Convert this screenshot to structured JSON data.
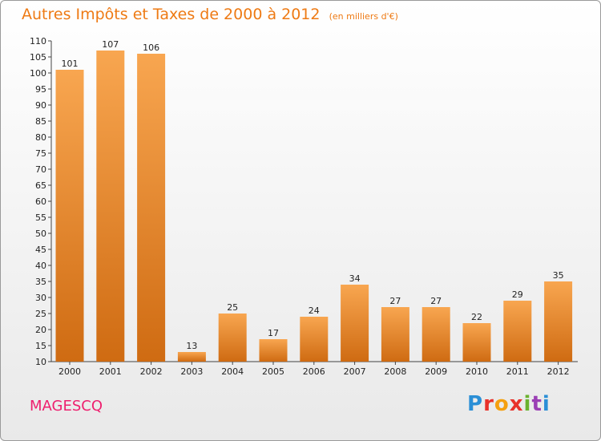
{
  "header": {
    "title": "Autres Impôts et Taxes de 2000 à 2012",
    "unit": "(en milliers d'€)"
  },
  "footer": {
    "place": "MAGESCQ",
    "logo": "Proxiti"
  },
  "colors": {
    "bar_light": "#f8a650",
    "bar_dark": "#cf6b12",
    "title": "#ee7a14",
    "place": "#ee1f6e"
  },
  "chart_data": {
    "type": "bar",
    "title": "Autres Impôts et Taxes de 2000 à 2012",
    "categories": [
      "2000",
      "2001",
      "2002",
      "2003",
      "2004",
      "2005",
      "2006",
      "2007",
      "2008",
      "2009",
      "2010",
      "2011",
      "2012"
    ],
    "values": [
      101,
      107,
      106,
      13,
      25,
      17,
      24,
      34,
      27,
      27,
      22,
      29,
      35
    ],
    "xlabel": "",
    "ylabel": "",
    "ylim": [
      10,
      110
    ],
    "yticks": [
      10,
      15,
      20,
      25,
      30,
      35,
      40,
      45,
      50,
      55,
      60,
      65,
      70,
      75,
      80,
      85,
      90,
      95,
      100,
      105,
      110
    ],
    "grid": false,
    "data_labels": true
  }
}
